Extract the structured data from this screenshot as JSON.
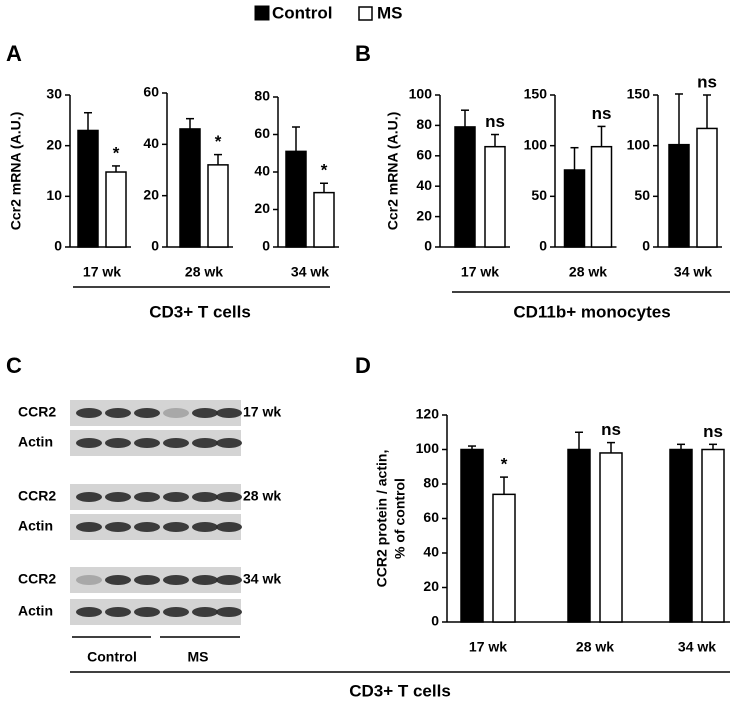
{
  "panels": [
    {
      "label": "A",
      "group": "CD3+ T cells"
    },
    {
      "label": "B",
      "group": "CD11b+ monocytes"
    },
    {
      "label": "C"
    },
    {
      "label": "D",
      "group": "CD3+ T cells"
    }
  ],
  "blot": {
    "rows": [
      {
        "label": "CCR2",
        "week": "17 wk"
      },
      {
        "label": "Actin"
      },
      {
        "label": "CCR2",
        "week": "28 wk"
      },
      {
        "label": "Actin"
      },
      {
        "label": "CCR2",
        "week": "34 wk"
      },
      {
        "label": "Actin"
      }
    ],
    "groups": [
      "Control",
      "MS"
    ]
  },
  "chart_data": [
    {
      "type": "bar",
      "ylabel": [
        "Ccr2 mRNA (A.U.)"
      ],
      "categories": [
        "17 wk"
      ],
      "ylim": [
        0,
        30
      ],
      "yticks": [
        0,
        10,
        20,
        30
      ],
      "series": [
        {
          "name": "Control",
          "color": "#000000",
          "values": [
            23
          ],
          "errors": [
            3.5
          ]
        },
        {
          "name": "MS",
          "color": "#ffffff",
          "values": [
            14.8
          ],
          "errors": [
            1.2
          ],
          "annotations": [
            "*"
          ]
        }
      ]
    },
    {
      "type": "bar",
      "categories": [
        "28 wk"
      ],
      "ylim": [
        0,
        60
      ],
      "yticks": [
        0,
        20,
        40,
        60
      ],
      "series": [
        {
          "name": "Control",
          "color": "#000000",
          "values": [
            46
          ],
          "errors": [
            4
          ]
        },
        {
          "name": "MS",
          "color": "#ffffff",
          "values": [
            32
          ],
          "errors": [
            4
          ],
          "annotations": [
            "*"
          ]
        }
      ]
    },
    {
      "type": "bar",
      "categories": [
        "34 wk"
      ],
      "ylim": [
        0,
        80
      ],
      "yticks": [
        0,
        20,
        40,
        60,
        80
      ],
      "series": [
        {
          "name": "Control",
          "color": "#000000",
          "values": [
            51
          ],
          "errors": [
            13
          ]
        },
        {
          "name": "MS",
          "color": "#ffffff",
          "values": [
            29
          ],
          "errors": [
            5
          ],
          "annotations": [
            "*"
          ]
        }
      ]
    },
    {
      "type": "bar",
      "ylabel": [
        "Ccr2 mRNA (A.U.)"
      ],
      "categories": [
        "17 wk"
      ],
      "ylim": [
        0,
        100
      ],
      "yticks": [
        0,
        20,
        40,
        60,
        80,
        100
      ],
      "series": [
        {
          "name": "Control",
          "color": "#000000",
          "values": [
            79
          ],
          "errors": [
            11
          ]
        },
        {
          "name": "MS",
          "color": "#ffffff",
          "values": [
            66
          ],
          "errors": [
            8
          ],
          "annotations": [
            "ns"
          ]
        }
      ]
    },
    {
      "type": "bar",
      "categories": [
        "28 wk"
      ],
      "ylim": [
        0,
        150
      ],
      "yticks": [
        0,
        50,
        100,
        150
      ],
      "series": [
        {
          "name": "Control",
          "color": "#000000",
          "values": [
            76
          ],
          "errors": [
            22
          ]
        },
        {
          "name": "MS",
          "color": "#ffffff",
          "values": [
            99
          ],
          "errors": [
            20
          ],
          "annotations": [
            "ns"
          ]
        }
      ]
    },
    {
      "type": "bar",
      "categories": [
        "34 wk"
      ],
      "ylim": [
        0,
        150
      ],
      "yticks": [
        0,
        50,
        100,
        150
      ],
      "series": [
        {
          "name": "Control",
          "color": "#000000",
          "values": [
            101
          ],
          "errors": [
            50
          ]
        },
        {
          "name": "MS",
          "color": "#ffffff",
          "values": [
            117
          ],
          "errors": [
            33
          ],
          "annotations": [
            "ns"
          ]
        }
      ]
    },
    {
      "type": "bar",
      "ylabel": [
        "CCR2 protein / actin,",
        "% of control"
      ],
      "categories": [
        "17 wk",
        "28 wk",
        "34 wk"
      ],
      "ylim": [
        0,
        120
      ],
      "yticks": [
        0,
        20,
        40,
        60,
        80,
        100,
        120
      ],
      "series": [
        {
          "name": "Control",
          "color": "#000000",
          "values": [
            100,
            100,
            100
          ],
          "errors": [
            2,
            10,
            3
          ]
        },
        {
          "name": "MS",
          "color": "#ffffff",
          "values": [
            74,
            98,
            100
          ],
          "errors": [
            10,
            6,
            3
          ],
          "annotations": [
            "*",
            "ns",
            "ns"
          ]
        }
      ]
    }
  ]
}
